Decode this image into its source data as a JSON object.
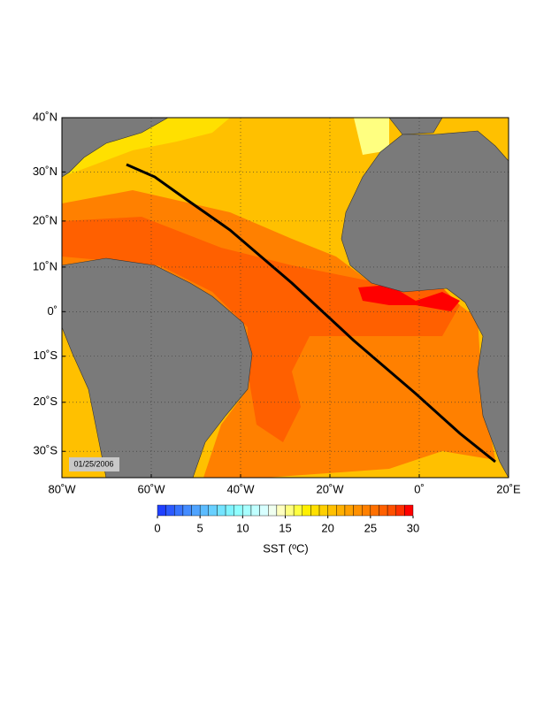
{
  "map": {
    "lat_ticks": [
      {
        "value": 40,
        "label": "40˚N"
      },
      {
        "value": 30,
        "label": "30˚N"
      },
      {
        "value": 20,
        "label": "20˚N"
      },
      {
        "value": 10,
        "label": "10˚N"
      },
      {
        "value": 0,
        "label": "0˚"
      },
      {
        "value": -10,
        "label": "10˚S"
      },
      {
        "value": -20,
        "label": "20˚S"
      },
      {
        "value": -30,
        "label": "30˚S"
      }
    ],
    "lon_ticks": [
      {
        "value": -80,
        "label": "80˚W"
      },
      {
        "value": -60,
        "label": "60˚W"
      },
      {
        "value": -40,
        "label": "40˚W"
      },
      {
        "value": -20,
        "label": "20˚W"
      },
      {
        "value": 0,
        "label": "0˚"
      },
      {
        "value": 20,
        "label": "20˚E"
      }
    ],
    "latlim": [
      -35,
      40
    ],
    "lonlim": [
      -80,
      20
    ],
    "date": "01/25/2006",
    "colorbar": {
      "label": "SST (ºC)",
      "lim": [
        0,
        30
      ],
      "ticks": [
        0,
        5,
        10,
        15,
        20,
        25,
        30
      ],
      "colors": [
        "#2040ff",
        "#2c5aff",
        "#3874ff",
        "#448cff",
        "#50a4ff",
        "#5cbcff",
        "#68d0ff",
        "#74e4ff",
        "#80f4ff",
        "#90ffff",
        "#a8ffff",
        "#c0ffff",
        "#d8ffff",
        "#f0fff0",
        "#ffffc0",
        "#ffff80",
        "#ffff40",
        "#fff000",
        "#ffe000",
        "#ffd000",
        "#ffc000",
        "#ffb000",
        "#ffa000",
        "#ff9000",
        "#ff8000",
        "#ff7000",
        "#ff6000",
        "#ff5000",
        "#ff3000",
        "#ff0000"
      ]
    }
  }
}
